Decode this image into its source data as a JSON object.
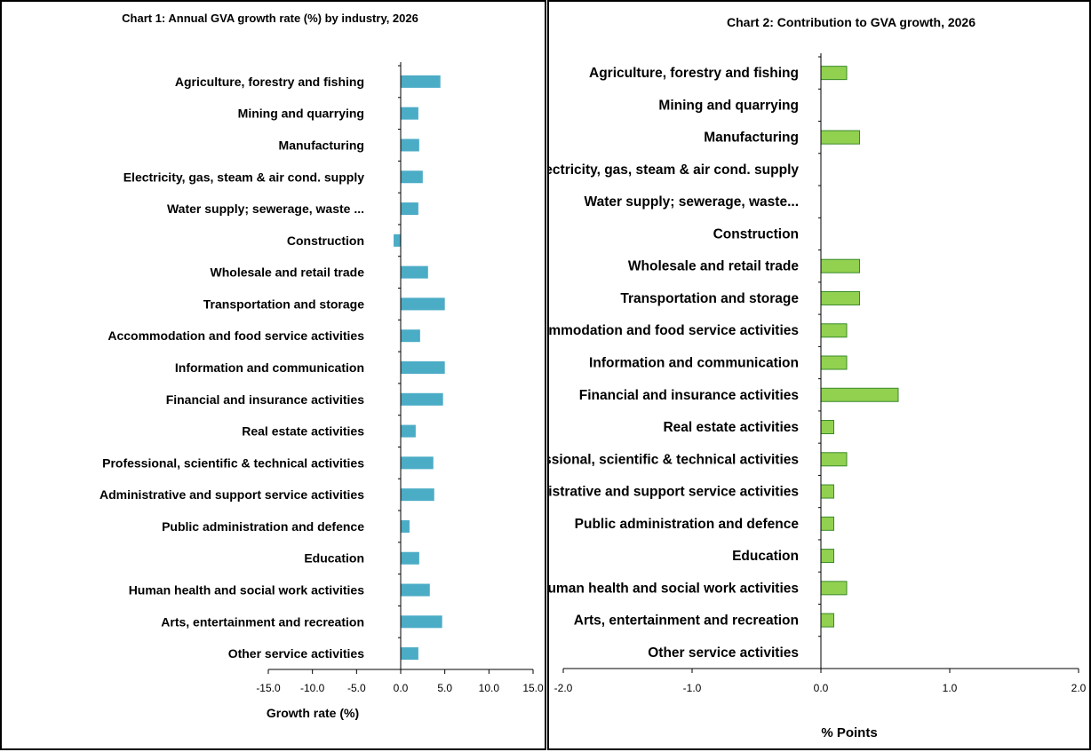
{
  "chart_data": [
    {
      "type": "bar",
      "orientation": "horizontal",
      "title": "Chart 1: Annual GVA growth rate (%) by industry, 2026",
      "xlabel": "Growth rate (%)",
      "ylabel": "",
      "xlim": [
        -15,
        15
      ],
      "xticks": [
        -15,
        -10,
        -5,
        0,
        5,
        10,
        15
      ],
      "tick_labels": [
        "-15.0",
        "-10.0",
        "-5.0",
        "0.0",
        "5.0",
        "10.0",
        "15.0"
      ],
      "grid": false,
      "color": "#4bacc6",
      "categories": [
        "Agriculture, forestry and fishing",
        "Mining and quarrying",
        "Manufacturing",
        "Electricity, gas, steam & air cond. supply",
        "Water supply; sewerage, waste ...",
        "Construction",
        "Wholesale and retail trade",
        "Transportation and storage",
        "Accommodation and food service activities",
        "Information and communication",
        "Financial and insurance activities",
        "Real estate activities",
        "Professional, scientific & technical activities",
        "Administrative and support service activities",
        "Public administration and defence",
        "Education",
        "Human health and social work activities",
        "Arts, entertainment and recreation",
        "Other service activities"
      ],
      "values": [
        4.5,
        2.0,
        2.1,
        2.5,
        2.0,
        -0.8,
        3.1,
        5.0,
        2.2,
        5.0,
        4.8,
        1.7,
        3.7,
        3.8,
        1.0,
        2.1,
        3.3,
        4.7,
        2.0
      ]
    },
    {
      "type": "bar",
      "orientation": "horizontal",
      "title": "Chart 2: Contribution to GVA growth, 2026",
      "xlabel": "% Points",
      "ylabel": "",
      "xlim": [
        -2,
        2
      ],
      "xticks": [
        -2,
        -1,
        0,
        1,
        2
      ],
      "tick_labels": [
        "-2.0",
        "-1.0",
        "0.0",
        "1.0",
        "2.0"
      ],
      "grid": false,
      "color": "#92d050",
      "edge_color": "#3a8a2a",
      "categories": [
        "Agriculture, forestry and fishing",
        "Mining and quarrying",
        "Manufacturing",
        "Electricity, gas, steam & air cond. supply",
        "Water supply; sewerage, waste...",
        "Construction",
        "Wholesale and retail trade",
        "Transportation and storage",
        "Accommodation and food service activities",
        "Information and communication",
        "Financial and insurance activities",
        "Real estate activities",
        "Professional, scientific & technical activities",
        "Administrative and support service activities",
        "Public administration and defence",
        "Education",
        "Human health and social work activities",
        "Arts, entertainment and recreation",
        "Other service activities"
      ],
      "values": [
        0.2,
        0.0,
        0.3,
        0.0,
        0.0,
        0.0,
        0.3,
        0.3,
        0.2,
        0.2,
        0.6,
        0.1,
        0.2,
        0.1,
        0.1,
        0.1,
        0.2,
        0.1,
        0.0
      ]
    }
  ]
}
